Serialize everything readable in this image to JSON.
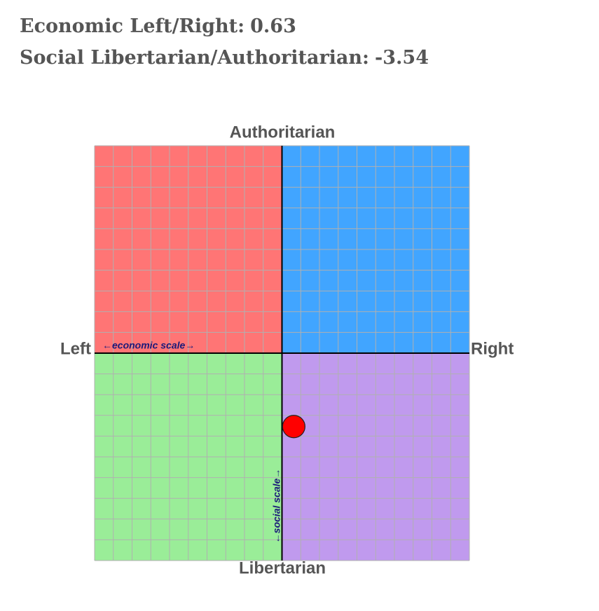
{
  "chart_data": {
    "type": "scatter",
    "economic_label": "Economic Left/Right:",
    "social_label": "Social Libertarian/Authoritarian:",
    "x": [
      0.63
    ],
    "y": [
      -3.54
    ],
    "color": "#ff0000",
    "xlim": [
      -10,
      10
    ],
    "ylim": [
      -10,
      10
    ],
    "xticks": [
      -10,
      -9,
      -8,
      -7,
      -6,
      -5,
      -4,
      -3,
      -2,
      -1,
      0,
      1,
      2,
      3,
      4,
      5,
      6,
      7,
      8,
      9,
      10
    ],
    "yticks": [
      -10,
      -9,
      -8,
      -7,
      -6,
      -5,
      -4,
      -3,
      -2,
      -1,
      0,
      1,
      2,
      3,
      4,
      5,
      6,
      7,
      8,
      9,
      10
    ],
    "grid": true,
    "top_label": "Authoritarian",
    "bottom_label": "Libertarian",
    "left_label": "Left",
    "right_label": "Right",
    "x_axis_label": "←economic scale→",
    "y_axis_label": "←social scale→"
  }
}
